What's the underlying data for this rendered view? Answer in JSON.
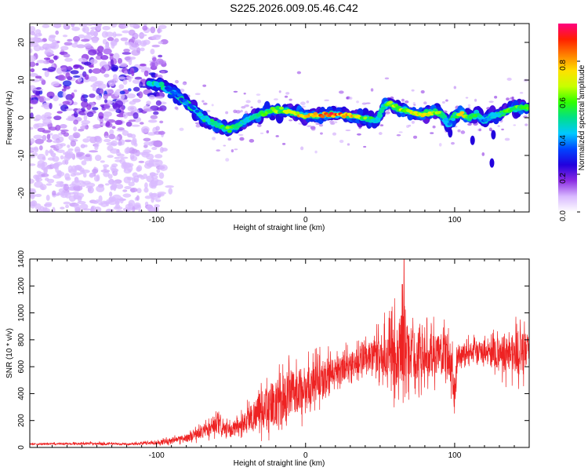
{
  "figure": {
    "title": "S225.2026.009.05.46.C42"
  },
  "chart_data": [
    {
      "type": "heatmap",
      "name": "spectrogram",
      "title": "S225.2026.009.05.46.C42",
      "xlabel": "Height of straight line (km)",
      "ylabel": "Frequency (Hz)",
      "xlim": [
        -185,
        150
      ],
      "ylim": [
        -25,
        25
      ],
      "xticks": [
        -100,
        0,
        100
      ],
      "yticks": [
        -20,
        -10,
        0,
        10,
        20
      ],
      "colorbar": {
        "label": "Normalized spectral amplitude",
        "range": [
          0,
          1
        ],
        "ticks": [
          "0.0",
          "0.2",
          "0.4",
          "0.6",
          "0.8"
        ],
        "colors": [
          "#ffffff",
          "#d8b8ff",
          "#8a2be2",
          "#2200dd",
          "#0044ff",
          "#00c8ff",
          "#00e08a",
          "#30ff00",
          "#c8ff00",
          "#ffe000",
          "#ff8000",
          "#ff2000",
          "#ff0080"
        ]
      },
      "ridge": {
        "x": [
          -100,
          -90,
          -80,
          -70,
          -60,
          -52,
          -45,
          -40,
          -30,
          -20,
          -10,
          0,
          10,
          20,
          30,
          40,
          48,
          52,
          56,
          62,
          70,
          80,
          90,
          96,
          100,
          105,
          110,
          115,
          120,
          125,
          130,
          140,
          150
        ],
        "freq": [
          9,
          7,
          4,
          0.5,
          -2,
          -3,
          -2,
          -1,
          1,
          2,
          1.5,
          0.5,
          0.5,
          1,
          0.5,
          0,
          -1,
          3,
          4,
          2.5,
          1.5,
          1,
          1.5,
          -2,
          0.5,
          1,
          0,
          1,
          -1,
          0.5,
          1,
          2.5,
          3
        ],
        "amplitude": [
          0.3,
          0.35,
          0.35,
          0.4,
          0.5,
          0.6,
          0.5,
          0.45,
          0.55,
          0.6,
          0.7,
          0.8,
          0.85,
          0.9,
          0.8,
          0.6,
          0.45,
          0.55,
          0.6,
          0.65,
          0.7,
          0.75,
          0.6,
          0.3,
          0.5,
          0.9,
          0.5,
          0.6,
          0.35,
          0.4,
          0.5,
          0.6,
          0.55
        ]
      },
      "noise_region_x": [
        -185,
        -95
      ],
      "noise_freq_span": [
        -25,
        25
      ],
      "noise_amplitude_max": 0.3
    },
    {
      "type": "line",
      "name": "snr",
      "xlabel": "Height of straight line (km)",
      "ylabel": "SNR (10 * v/v)",
      "xlim": [
        -185,
        150
      ],
      "ylim": [
        0,
        1400
      ],
      "xticks": [
        -100,
        0,
        100
      ],
      "yticks": [
        0,
        200,
        400,
        600,
        800,
        1000,
        1200,
        1400
      ],
      "color": "#ee2222",
      "envelope": {
        "x": [
          -185,
          -160,
          -140,
          -120,
          -100,
          -80,
          -70,
          -60,
          -50,
          -40,
          -30,
          -20,
          -10,
          0,
          10,
          20,
          30,
          40,
          50,
          55,
          60,
          65,
          70,
          80,
          90,
          95,
          98,
          100,
          102,
          110,
          120,
          130,
          140,
          150
        ],
        "mean": [
          25,
          28,
          30,
          25,
          35,
          70,
          110,
          160,
          120,
          200,
          280,
          330,
          400,
          450,
          510,
          570,
          620,
          660,
          690,
          700,
          720,
          750,
          700,
          680,
          690,
          700,
          600,
          400,
          680,
          720,
          700,
          700,
          700,
          710
        ],
        "spread": [
          10,
          12,
          15,
          10,
          25,
          50,
          80,
          120,
          80,
          150,
          250,
          300,
          300,
          280,
          250,
          200,
          180,
          180,
          250,
          350,
          450,
          500,
          350,
          300,
          280,
          250,
          300,
          300,
          120,
          120,
          150,
          220,
          300,
          250
        ]
      },
      "peak": {
        "x": 66,
        "value": 1400
      }
    }
  ]
}
